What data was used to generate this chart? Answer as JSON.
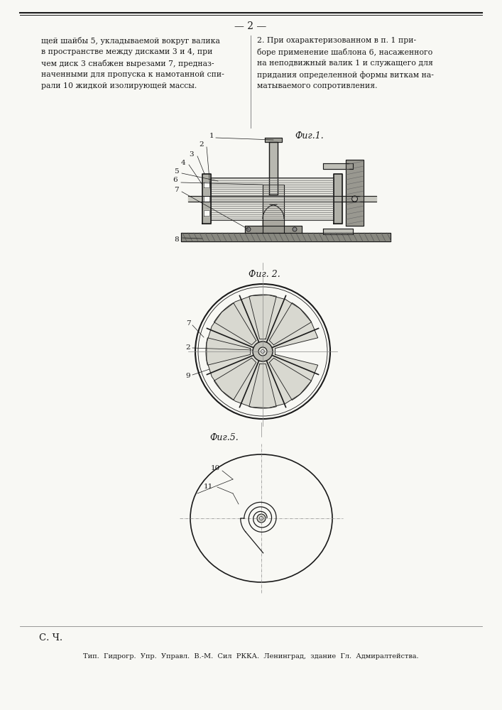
{
  "page_number": "— 2 —",
  "background_color": "#f8f8f4",
  "text_color": "#1a1a1a",
  "left_column_text": [
    "щей шайбы 5, укладываемой вокруг валика",
    "в пространстве между дисками 3 и 4, при",
    "чем диск 3 снабжен вырезами 7, предназ-",
    "наченными для пропуска к намотанной спи-",
    "рали 10 жидкой изолирующей массы."
  ],
  "right_column_text": [
    "2. При охарактеризованном в п. 1 при-",
    "боре применение шаблона 6, насаженного",
    "на неподвижный валик 1 и служащего для",
    "придания определенной формы виткам на-",
    "матываемого сопротивления."
  ],
  "fig1_label": "Фиг.1.",
  "fig2_label": "Фиг. 2.",
  "fig3_label": "Фиг.5.",
  "bottom_left": "С. Ч.",
  "bottom_text": "Тип.  Гидрогр.  Упр.  Управл.  В.-М.  Сил  РККА.  Ленинград,  здание  Гл.  Адмиралтейства.",
  "line_color": "#1a1a1a",
  "fig_color": "#1a1a1a"
}
